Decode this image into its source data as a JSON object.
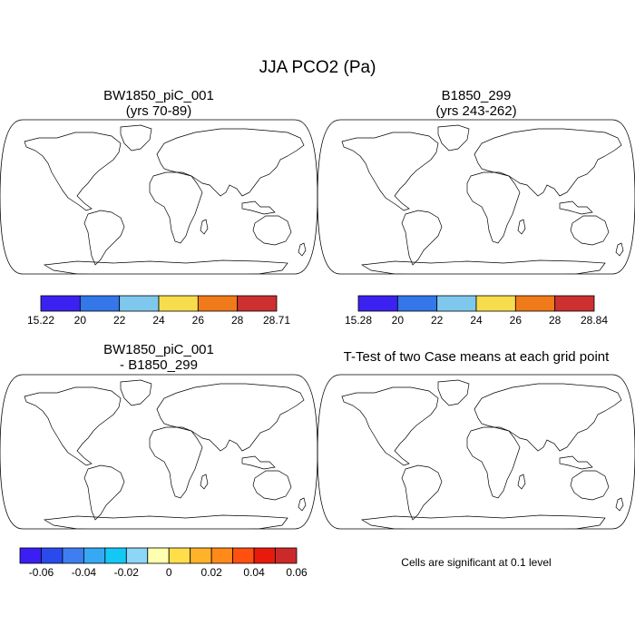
{
  "main_title": "JJA PCO2 (Pa)",
  "panels": [
    {
      "id": "tl",
      "title_line1": "BW1850_piC_001",
      "title_line2": "(yrs 70-89)",
      "fill": "field",
      "base_color": "#e85d13"
    },
    {
      "id": "tr",
      "title_line1": "B1850_299",
      "title_line2": "(yrs 243-262)",
      "fill": "field",
      "base_color": "#e85d13"
    },
    {
      "id": "bl",
      "title_line1": "BW1850_piC_001",
      "title_line2": "- B1850_299",
      "fill": "solid",
      "base_color": "#3e2ee6"
    },
    {
      "id": "br",
      "title_line1": "T-Test of two Case means at each grid point",
      "title_line2": "",
      "fill": "solid",
      "base_color": "#ff0000"
    }
  ],
  "colorbars": [
    {
      "id": "cb1",
      "colors": [
        "#3c22f0",
        "#3377e8",
        "#7ec8ee",
        "#f7dc4c",
        "#f07a1a",
        "#cc3030"
      ],
      "labels": [
        "15.22",
        "20",
        "22",
        "24",
        "26",
        "28",
        "28.71"
      ]
    },
    {
      "id": "cb2",
      "colors": [
        "#3c22f0",
        "#3377e8",
        "#7ec8ee",
        "#f7dc4c",
        "#f07a1a",
        "#cc3030"
      ],
      "labels": [
        "15.28",
        "20",
        "22",
        "24",
        "26",
        "28",
        "28.84"
      ]
    },
    {
      "id": "cb3",
      "colors": [
        "#3a1ef4",
        "#2a4bec",
        "#3f7ef0",
        "#36a8f4",
        "#14c8f6",
        "#8cd6f6",
        "#ffffb0",
        "#ffde4a",
        "#ffb22a",
        "#ff8a1a",
        "#ff5010",
        "#e81a0c",
        "#cc2a2a"
      ],
      "labels": [
        "-0.06",
        "-0.04",
        "-0.02",
        "0",
        "0.02",
        "0.04",
        "0.06"
      ]
    }
  ],
  "note": "Cells are significant at 0.1 level"
}
